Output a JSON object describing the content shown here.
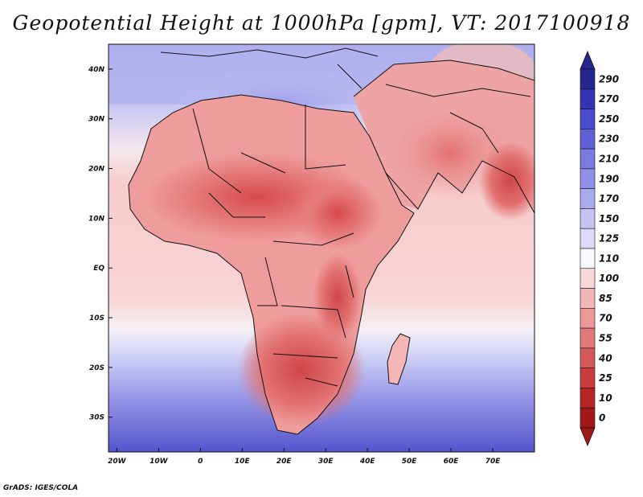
{
  "title": "Geopotential Height at 1000hPa [gpm], VT: 2017100918",
  "footer": "GrADS: IGES/COLA",
  "map": {
    "lon_range": [
      -22,
      80
    ],
    "lat_range": [
      -37,
      45
    ],
    "x_ticks": [
      "20W",
      "10W",
      "0",
      "10E",
      "20E",
      "30E",
      "40E",
      "50E",
      "60E",
      "70E"
    ],
    "x_tick_values": [
      -20,
      -10,
      0,
      10,
      20,
      30,
      40,
      50,
      60,
      70
    ],
    "y_ticks": [
      "40N",
      "30N",
      "20N",
      "10N",
      "EQ",
      "10S",
      "20S",
      "30S"
    ],
    "y_tick_values": [
      40,
      30,
      20,
      10,
      0,
      -10,
      -20,
      -30
    ]
  },
  "colorbar": {
    "labels": [
      "290",
      "270",
      "250",
      "230",
      "210",
      "190",
      "170",
      "150",
      "125",
      "110",
      "100",
      "85",
      "70",
      "55",
      "40",
      "25",
      "10",
      "0"
    ],
    "colors": [
      "#26268f",
      "#3333b3",
      "#4a4acc",
      "#6060d9",
      "#7a7ae0",
      "#9090e8",
      "#aaaaef",
      "#c4c4f5",
      "#dcdcfa",
      "#f8f8ff",
      "#f8d8d8",
      "#f2b6b6",
      "#ea9898",
      "#e07878",
      "#d45858",
      "#c83c3c",
      "#b82424",
      "#a01818"
    ]
  },
  "colors": {
    "ocean_south": "#7070dd",
    "ocean_mid": "#dcdcfa",
    "land_hot": "#d9585a",
    "land_warm": "#ee9c9c",
    "land_mild": "#f6c4c4",
    "med_blue": "#b0b0f0",
    "border": "#111111"
  }
}
